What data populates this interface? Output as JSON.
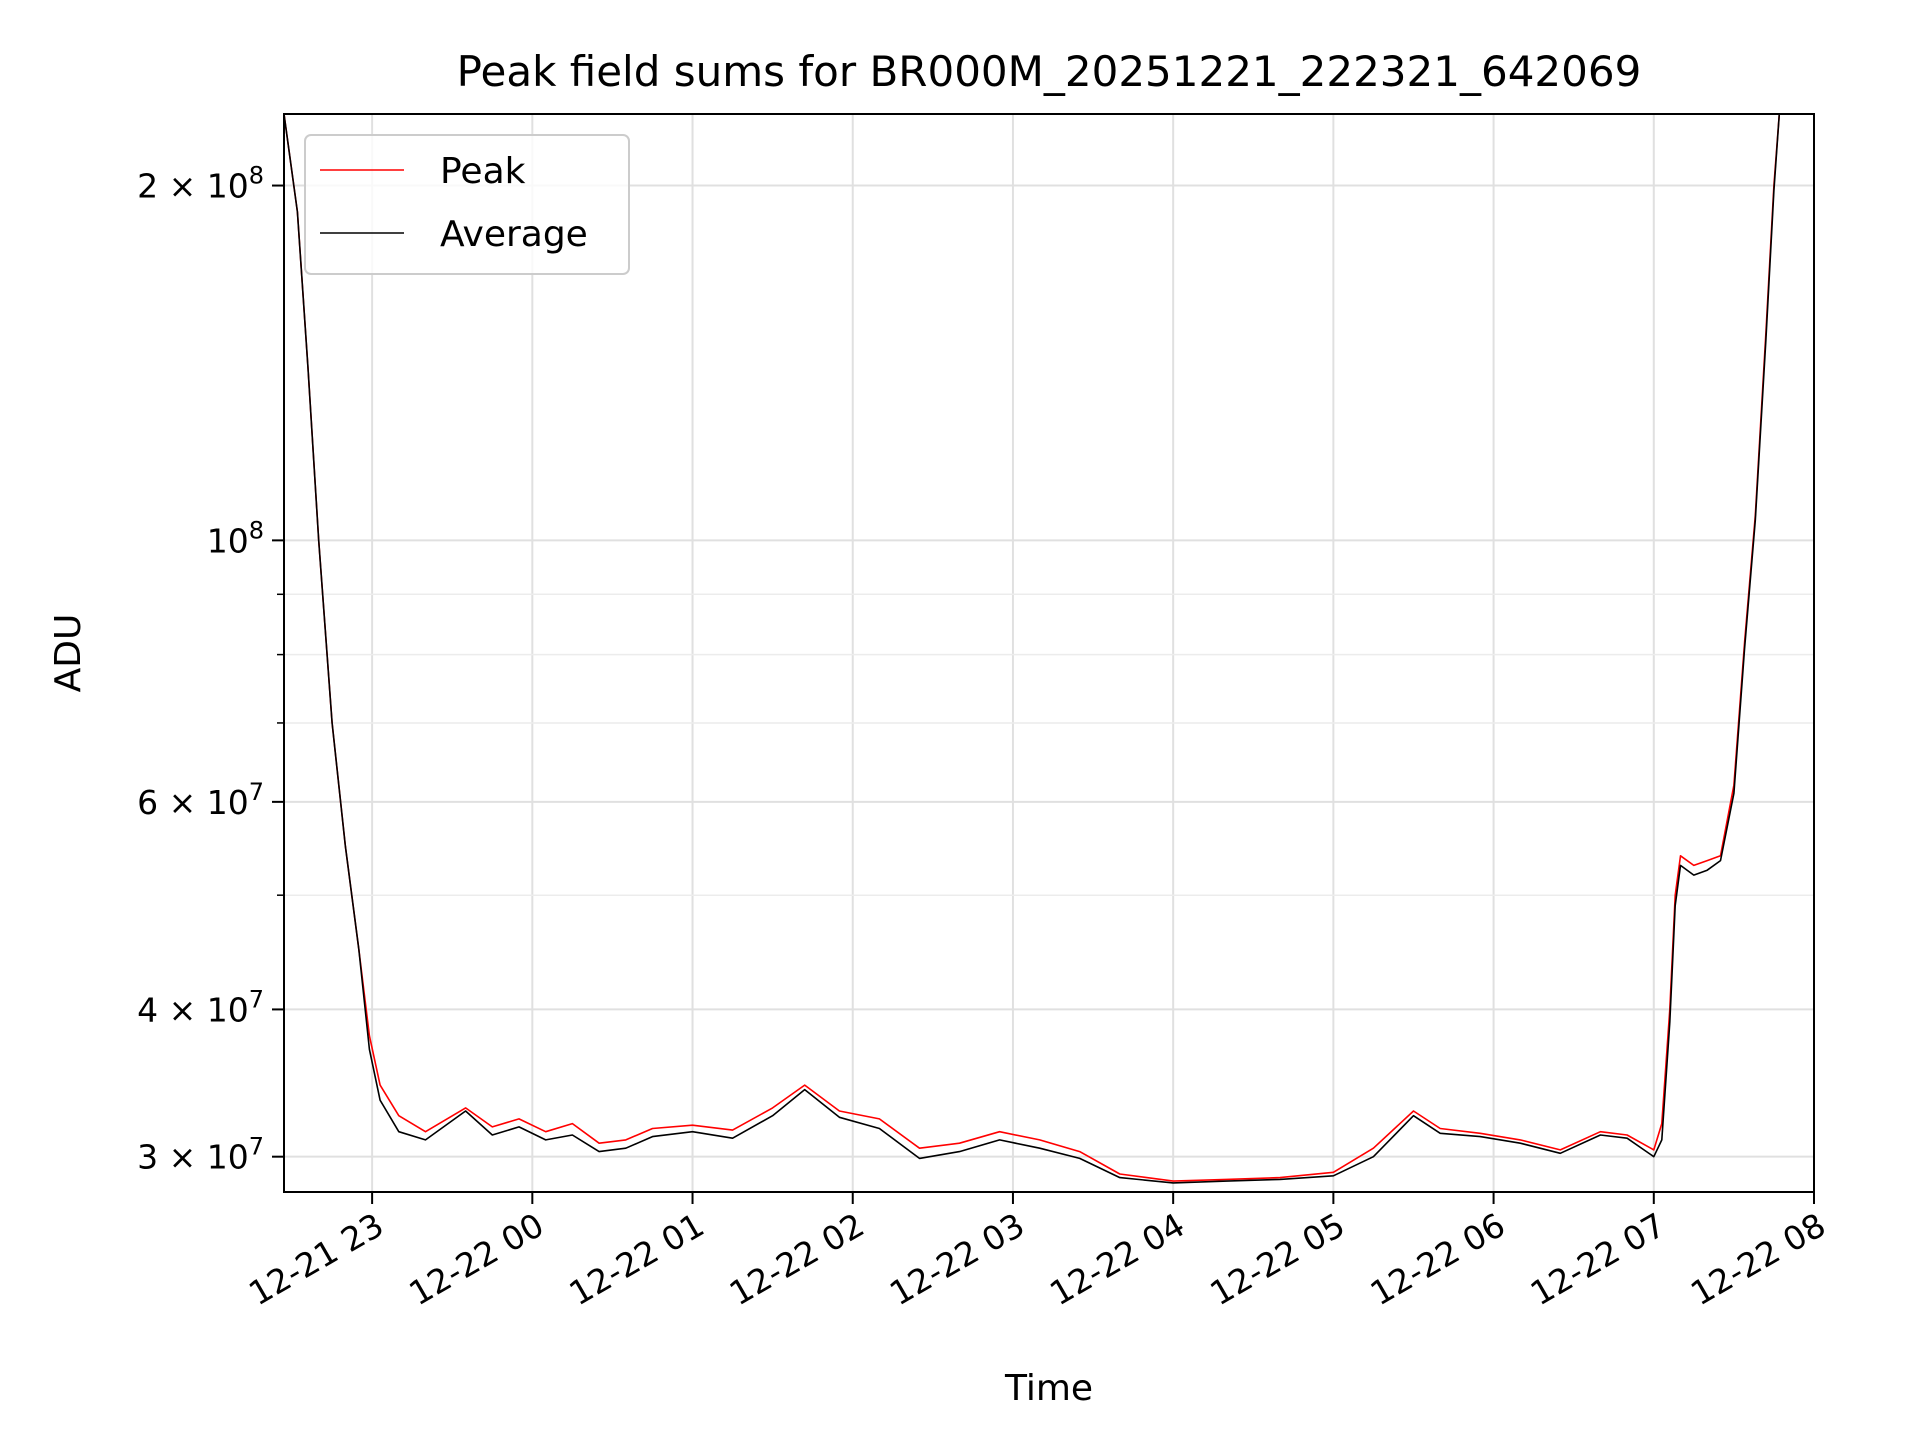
{
  "chart_data": {
    "type": "line",
    "title": "Peak field sums for BR000M_20251221_222321_642069",
    "xlabel": "Time",
    "ylabel": "ADU",
    "yscale": "log",
    "grid": true,
    "legend_position": "top-left",
    "xlim": [
      "2025-12-21 22:27",
      "2025-12-22 08:00"
    ],
    "ylim": [
      28000000,
      230000000
    ],
    "x_ticks": [
      {
        "value": "2025-12-21 23:00",
        "label": "12-21 23"
      },
      {
        "value": "2025-12-22 00:00",
        "label": "12-22 00"
      },
      {
        "value": "2025-12-22 01:00",
        "label": "12-22 01"
      },
      {
        "value": "2025-12-22 02:00",
        "label": "12-22 02"
      },
      {
        "value": "2025-12-22 03:00",
        "label": "12-22 03"
      },
      {
        "value": "2025-12-22 04:00",
        "label": "12-22 04"
      },
      {
        "value": "2025-12-22 05:00",
        "label": "12-22 05"
      },
      {
        "value": "2025-12-22 06:00",
        "label": "12-22 06"
      },
      {
        "value": "2025-12-22 07:00",
        "label": "12-22 07"
      },
      {
        "value": "2025-12-22 08:00",
        "label": "12-22 08"
      }
    ],
    "y_major_ticks": [
      {
        "value": 30000000,
        "mantissa": "3",
        "exponent": "7"
      },
      {
        "value": 40000000,
        "mantissa": "4",
        "exponent": "7"
      },
      {
        "value": 60000000,
        "mantissa": "6",
        "exponent": "7"
      },
      {
        "value": 100000000,
        "mantissa": "",
        "exponent": "8"
      },
      {
        "value": 200000000,
        "mantissa": "2",
        "exponent": "8"
      }
    ],
    "y_minor_ticks": [
      50000000,
      70000000,
      80000000,
      90000000
    ],
    "series": [
      {
        "name": "Peak",
        "color": "#ff0000",
        "x": [
          "2025-12-21 22:27",
          "2025-12-21 22:32",
          "2025-12-21 22:36",
          "2025-12-21 22:40",
          "2025-12-21 22:45",
          "2025-12-21 22:50",
          "2025-12-21 22:55",
          "2025-12-21 22:59",
          "2025-12-21 23:03",
          "2025-12-21 23:10",
          "2025-12-21 23:20",
          "2025-12-21 23:35",
          "2025-12-21 23:45",
          "2025-12-21 23:55",
          "2025-12-22 00:05",
          "2025-12-22 00:15",
          "2025-12-22 00:25",
          "2025-12-22 00:35",
          "2025-12-22 00:45",
          "2025-12-22 01:00",
          "2025-12-22 01:15",
          "2025-12-22 01:30",
          "2025-12-22 01:42",
          "2025-12-22 01:55",
          "2025-12-22 02:10",
          "2025-12-22 02:25",
          "2025-12-22 02:40",
          "2025-12-22 02:55",
          "2025-12-22 03:10",
          "2025-12-22 03:25",
          "2025-12-22 03:40",
          "2025-12-22 04:00",
          "2025-12-22 04:20",
          "2025-12-22 04:40",
          "2025-12-22 05:00",
          "2025-12-22 05:15",
          "2025-12-22 05:30",
          "2025-12-22 05:40",
          "2025-12-22 05:55",
          "2025-12-22 06:10",
          "2025-12-22 06:25",
          "2025-12-22 06:40",
          "2025-12-22 06:50",
          "2025-12-22 07:00",
          "2025-12-22 07:03",
          "2025-12-22 07:06",
          "2025-12-22 07:08",
          "2025-12-22 07:10",
          "2025-12-22 07:15",
          "2025-12-22 07:20",
          "2025-12-22 07:25",
          "2025-12-22 07:30",
          "2025-12-22 07:34",
          "2025-12-22 07:38",
          "2025-12-22 07:42",
          "2025-12-22 07:45",
          "2025-12-22 07:47"
        ],
        "y": [
          230000000,
          190000000,
          140000000,
          100000000,
          70000000,
          55000000,
          45000000,
          38000000,
          34500000,
          32500000,
          31500000,
          33000000,
          31800000,
          32300000,
          31500000,
          32000000,
          30800000,
          31000000,
          31700000,
          31900000,
          31600000,
          33000000,
          34500000,
          32800000,
          32300000,
          30500000,
          30800000,
          31500000,
          31000000,
          30300000,
          29000000,
          28600000,
          28700000,
          28800000,
          29100000,
          30500000,
          32800000,
          31700000,
          31400000,
          31000000,
          30400000,
          31500000,
          31300000,
          30400000,
          32000000,
          40000000,
          50000000,
          54000000,
          53000000,
          53500000,
          54000000,
          62000000,
          82000000,
          105000000,
          150000000,
          200000000,
          230000000
        ]
      },
      {
        "name": "Average",
        "color": "#000000",
        "x": [
          "2025-12-21 22:27",
          "2025-12-21 22:32",
          "2025-12-21 22:36",
          "2025-12-21 22:40",
          "2025-12-21 22:45",
          "2025-12-21 22:50",
          "2025-12-21 22:55",
          "2025-12-21 22:59",
          "2025-12-21 23:03",
          "2025-12-21 23:10",
          "2025-12-21 23:20",
          "2025-12-21 23:35",
          "2025-12-21 23:45",
          "2025-12-21 23:55",
          "2025-12-22 00:05",
          "2025-12-22 00:15",
          "2025-12-22 00:25",
          "2025-12-22 00:35",
          "2025-12-22 00:45",
          "2025-12-22 01:00",
          "2025-12-22 01:15",
          "2025-12-22 01:30",
          "2025-12-22 01:42",
          "2025-12-22 01:55",
          "2025-12-22 02:10",
          "2025-12-22 02:25",
          "2025-12-22 02:40",
          "2025-12-22 02:55",
          "2025-12-22 03:10",
          "2025-12-22 03:25",
          "2025-12-22 03:40",
          "2025-12-22 04:00",
          "2025-12-22 04:20",
          "2025-12-22 04:40",
          "2025-12-22 05:00",
          "2025-12-22 05:15",
          "2025-12-22 05:30",
          "2025-12-22 05:40",
          "2025-12-22 05:55",
          "2025-12-22 06:10",
          "2025-12-22 06:25",
          "2025-12-22 06:40",
          "2025-12-22 06:50",
          "2025-12-22 07:00",
          "2025-12-22 07:03",
          "2025-12-22 07:06",
          "2025-12-22 07:08",
          "2025-12-22 07:10",
          "2025-12-22 07:15",
          "2025-12-22 07:20",
          "2025-12-22 07:25",
          "2025-12-22 07:30",
          "2025-12-22 07:34",
          "2025-12-22 07:38",
          "2025-12-22 07:42",
          "2025-12-22 07:45",
          "2025-12-22 07:47"
        ],
        "y": [
          230000000,
          190000000,
          140000000,
          100000000,
          70000000,
          55000000,
          45000000,
          37000000,
          33500000,
          31500000,
          31000000,
          32800000,
          31300000,
          31800000,
          31000000,
          31300000,
          30300000,
          30500000,
          31200000,
          31500000,
          31100000,
          32500000,
          34200000,
          32400000,
          31700000,
          29900000,
          30300000,
          31000000,
          30500000,
          29900000,
          28800000,
          28500000,
          28600000,
          28700000,
          28900000,
          30000000,
          32500000,
          31400000,
          31200000,
          30800000,
          30200000,
          31300000,
          31100000,
          30000000,
          31000000,
          39000000,
          49000000,
          53000000,
          52000000,
          52500000,
          53500000,
          61000000,
          81000000,
          104000000,
          148000000,
          198000000,
          230000000
        ]
      }
    ]
  }
}
